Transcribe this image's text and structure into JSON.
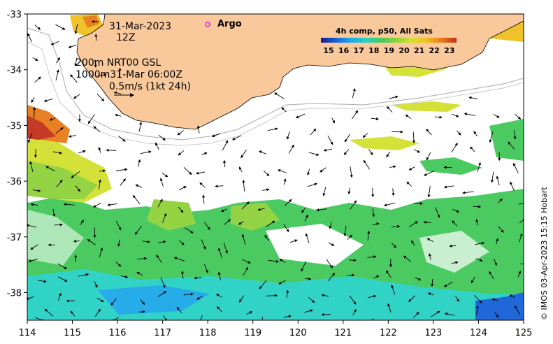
{
  "map": {
    "date_label": "31-Mar-2023",
    "time_label": "12Z",
    "isobath_label": "200m  NRT00 GSL",
    "isobath2_label": "1000m31-Mar 06:00Z",
    "vector_scale_label": "0.5m/s (1kt 24h)",
    "argo_label": "Argo",
    "legend_title": "4h comp, p50, All Sats",
    "legend_ticks": [
      "15",
      "16",
      "17",
      "18",
      "19",
      "20",
      "21",
      "22",
      "23"
    ],
    "credit": "© IMOS 03-Apr-2023 15:15 Hobart",
    "x_ticks": [
      "114",
      "115",
      "116",
      "117",
      "118",
      "119",
      "120",
      "121",
      "122",
      "123",
      "124",
      "125"
    ],
    "y_ticks": [
      "-33",
      "-34",
      "-35",
      "-36",
      "-37",
      "-38"
    ],
    "colors": {
      "land": "#f9c89b",
      "argo_marker": "#e01ed0",
      "colorbar": [
        "#1a1a8c",
        "#1560d8",
        "#1aa8e8",
        "#27d1c4",
        "#43c85a",
        "#8fd23a",
        "#d2e02e",
        "#f0c020",
        "#e87a18",
        "#c0301a"
      ]
    }
  }
}
